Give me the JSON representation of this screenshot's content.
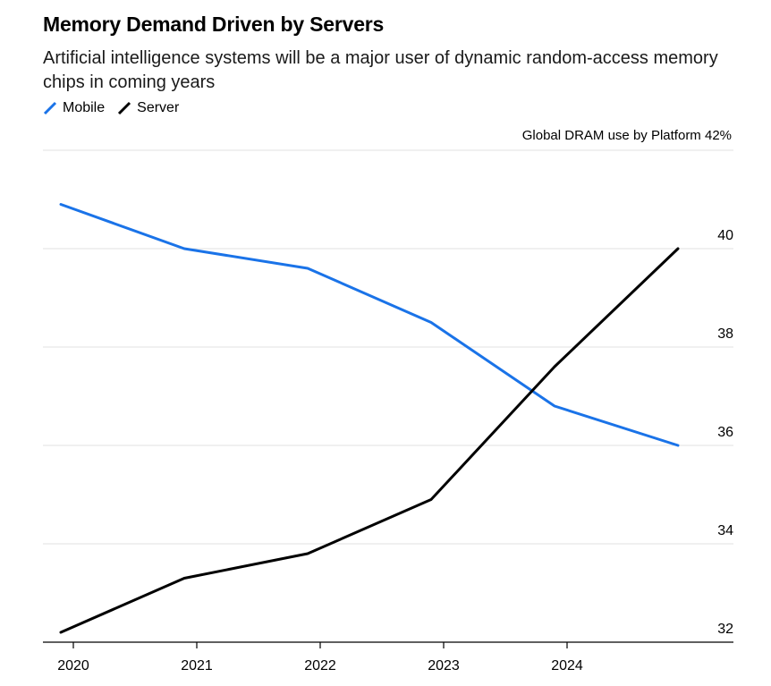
{
  "title": "Memory Demand Driven by Servers",
  "subtitle": "Artificial intelligence systems will be a major user of dynamic random-access memory chips in coming years",
  "units_label": "Global DRAM use by Platform 42%",
  "legend": [
    {
      "name": "Mobile",
      "color": "#1a73e8",
      "icon": "slash-line-icon"
    },
    {
      "name": "Server",
      "color": "#000000",
      "icon": "slash-line-icon"
    }
  ],
  "chart_data": {
    "type": "line",
    "title": "Memory Demand Driven by Servers",
    "subtitle": "Artificial intelligence systems will be a major user of dynamic random-access memory chips in coming years",
    "xlabel": "",
    "ylabel": "Global DRAM use by Platform 42%",
    "x": [
      2020,
      2021,
      2022,
      2023,
      2024,
      2025
    ],
    "x_tick_labels": [
      "2020",
      "2021",
      "2022",
      "2023",
      "2024"
    ],
    "y_ticks": [
      32,
      34,
      36,
      38,
      40
    ],
    "ylim": [
      32,
      42
    ],
    "grid": true,
    "series": [
      {
        "name": "Mobile",
        "color": "#1a73e8",
        "values": [
          40.9,
          40.0,
          39.6,
          38.5,
          36.8,
          36.0
        ]
      },
      {
        "name": "Server",
        "color": "#000000",
        "values": [
          32.2,
          33.3,
          33.8,
          34.9,
          37.6,
          40.0
        ]
      }
    ]
  }
}
